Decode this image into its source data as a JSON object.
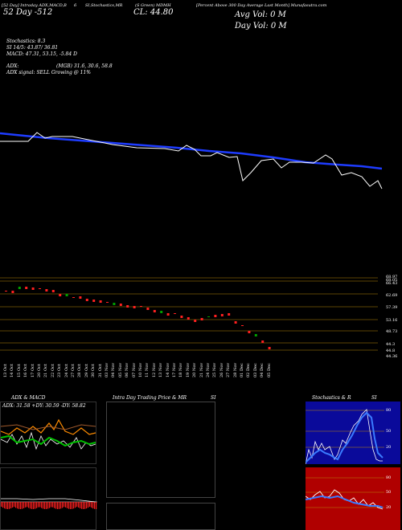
{
  "header": {
    "seg1": "[52 Day] Intraday ADX,MACD,B",
    "seg2": "6",
    "seg3": "SI,Stochastics,MR",
    "seg4": "(S Green) MDMH",
    "seg5": "[Percent Above 300 Day Average Last Month] Munafasutra.com",
    "row2_left": "52 Day -512",
    "row2_mid": "CL: 44.80",
    "row2_right": "Avg Vol: 0  M",
    "row3_right": "Day Vol: 0  M"
  },
  "indicators": {
    "stochastics": "Stochastics: 8.3",
    "si": "SI 14/5: 43.87/ 36.81",
    "macd": "MACD: 47.31, 53.15, -5.84  D",
    "adx_label": "ADX:",
    "adx_values": "(MGB) 31.6,  30.6,  58.8",
    "adx_signal": "ADX  signal: SELL  Growing  @ 11%"
  },
  "price_levels": [
    "68.97",
    "68.05",
    "66.43",
    "62.69",
    "57.39",
    "53.16",
    "48.73",
    "44.3",
    "44.8",
    "44.36"
  ],
  "dates": [
    "13 Oct",
    "14 Oct",
    "15 Oct",
    "16 Oct",
    "17 Oct",
    "20 Oct",
    "21 Oct",
    "22 Oct",
    "23 Oct",
    "24 Oct",
    "27 Oct",
    "28 Oct",
    "29 Oct",
    "30 Oct",
    "31 Oct",
    "03 Nov",
    "04 Nov",
    "05 Nov",
    "06 Nov",
    "07 Nov",
    "10 Nov",
    "11 Nov",
    "12 Nov",
    "13 Nov",
    "14 Nov",
    "17 Nov",
    "18 Nov",
    "19 Nov",
    "20 Nov",
    "21 Nov",
    "24 Nov",
    "25 Nov",
    "26 Nov",
    "27 Nov",
    "28 Nov",
    "01 Dec",
    "02 Dec",
    "03 Dec",
    "04 Dec",
    "05 Dec"
  ],
  "panels": {
    "adx_macd_title": "ADX  & MACD",
    "adx_readout": "ADX: 31.58  +DY: 30.59  -DY: 58.82",
    "intraday_title": "Intra  Day Trading Price  & MR",
    "intraday_si": "SI",
    "stoch_title": "Stochastics & R",
    "stoch_si": "SI",
    "stoch_levels": [
      "80",
      "50",
      "20"
    ],
    "rsi_levels": [
      "80",
      "50",
      "20"
    ]
  },
  "colors": {
    "avg_line": "#1e3cff",
    "price_line": "#ffffff",
    "level_line": "#b8860b",
    "up": "#00a000",
    "down": "#ff2020",
    "stoch_bg": "#0a0a9a",
    "rsi_bg": "#b00000"
  }
}
